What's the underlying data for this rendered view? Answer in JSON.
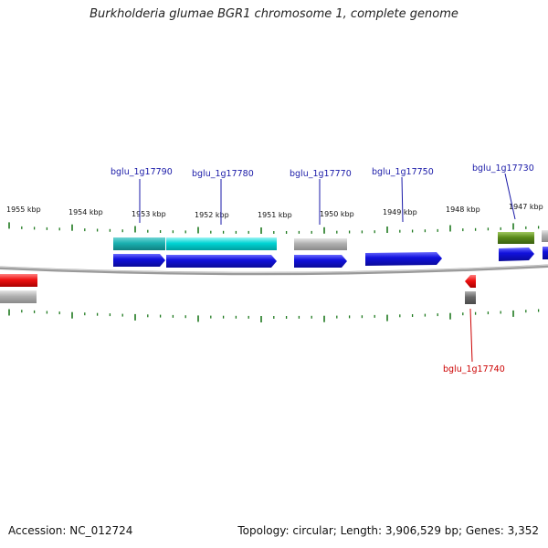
{
  "title": "Burkholderia glumae BGR1 chromosome 1, complete genome",
  "footer": {
    "accession": "Accession: NC_012724",
    "summary": "Topology: circular; Length: 3,906,529 bp; Genes: 3,352"
  },
  "colors": {
    "backbone": "#888888",
    "tick": "#1f7a1f",
    "label_forward": "#1a1aa8",
    "label_reverse": "#cc0000",
    "cds": "#1111dd",
    "cyan": "#00d4d4",
    "teal": "#1ab0b0",
    "gray": "#b0b0b0",
    "darkgray": "#6a6a6a",
    "olive": "#5a8a1a",
    "red": "#ee1111"
  },
  "scale": {
    "unit": "kbp",
    "labels": [
      {
        "kbp": 1955,
        "text": "1955 kbp"
      },
      {
        "kbp": 1954,
        "text": "1954 kbp"
      },
      {
        "kbp": 1953,
        "text": "1953 kbp"
      },
      {
        "kbp": 1952,
        "text": "1952 kbp"
      },
      {
        "kbp": 1951,
        "text": "1951 kbp"
      },
      {
        "kbp": 1950,
        "text": "1950 kbp"
      },
      {
        "kbp": 1949,
        "text": "1949 kbp"
      },
      {
        "kbp": 1948,
        "text": "1948 kbp"
      },
      {
        "kbp": 1947,
        "text": "1947 kbp"
      }
    ]
  },
  "genes": [
    {
      "label": "bglu_1g17790",
      "strand": "forward",
      "label_color": "label_forward"
    },
    {
      "label": "bglu_1g17780",
      "strand": "forward",
      "label_color": "label_forward"
    },
    {
      "label": "bglu_1g17770",
      "strand": "forward",
      "label_color": "label_forward"
    },
    {
      "label": "bglu_1g17750",
      "strand": "forward",
      "label_color": "label_forward"
    },
    {
      "label": "bglu_1g17730",
      "strand": "forward",
      "label_color": "label_forward"
    },
    {
      "label": "bglu_1g17740",
      "strand": "reverse",
      "label_color": "label_reverse"
    }
  ]
}
